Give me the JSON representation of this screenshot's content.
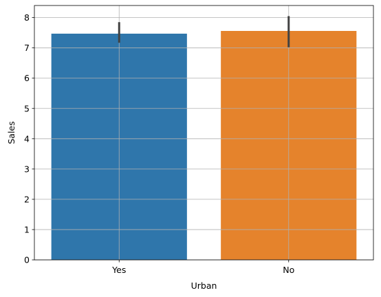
{
  "chart_data": {
    "type": "bar",
    "categories": [
      "Yes",
      "No"
    ],
    "values": [
      7.47,
      7.56
    ],
    "error_bars": [
      [
        7.17,
        7.85
      ],
      [
        7.02,
        8.05
      ]
    ],
    "colors": [
      "#2f76ab",
      "#e5832c"
    ],
    "xlabel": "Urban",
    "ylabel": "Sales",
    "ylim": [
      0,
      8.4
    ],
    "yticks": [
      "0",
      "1",
      "2",
      "3",
      "4",
      "5",
      "6",
      "7",
      "8"
    ],
    "grid": true,
    "error_bar_color": "#424242"
  }
}
